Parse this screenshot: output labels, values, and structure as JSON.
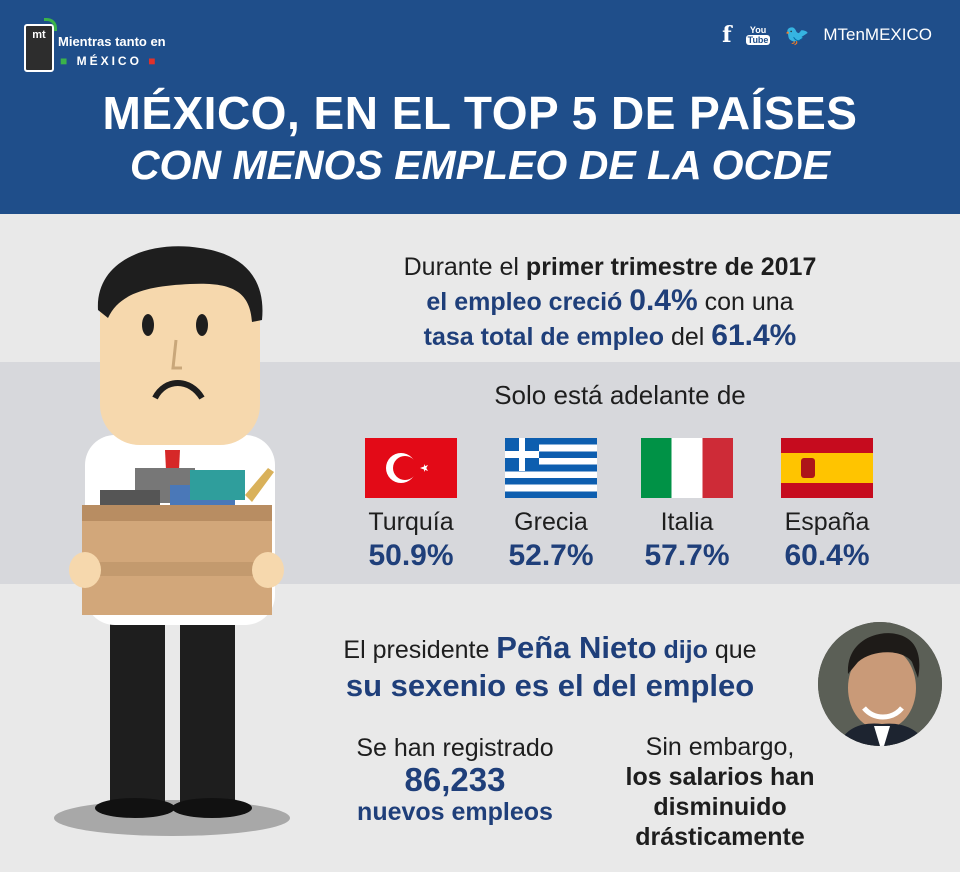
{
  "brand": {
    "line1": "Mientras tanto en",
    "line2": "MÉXICO",
    "badge": "mt"
  },
  "social": {
    "youtube_top": "You",
    "youtube_bottom": "Tube",
    "handle": "MTenMEXICO"
  },
  "title": {
    "line1": "MÉXICO, EN EL TOP 5 DE PAÍSES",
    "line2": "CON MENOS EMPLEO DE LA OCDE"
  },
  "stat": {
    "p1": "Durante el ",
    "p1b": "primer trimestre de 2017",
    "p2b": "el empleo creció ",
    "p2v": "0.4%",
    "p2": " con una",
    "p3b": "tasa total de empleo",
    "p3": " del ",
    "p3v": "61.4%"
  },
  "ahead_label": "Solo está adelante de",
  "countries": [
    {
      "name": "Turquía",
      "value": "50.9%"
    },
    {
      "name": "Grecia",
      "value": "52.7%"
    },
    {
      "name": "Italia",
      "value": "57.7%"
    },
    {
      "name": "España",
      "value": "60.4%"
    }
  ],
  "president": {
    "p1": "El presidente ",
    "p1b": "Peña Nieto",
    "p1c": " dijo",
    "p1d": " que",
    "p2": "su sexenio es el del empleo"
  },
  "registered": {
    "line1": "Se han registrado",
    "number": "86,233",
    "line3": "nuevos empleos"
  },
  "salaries": {
    "line1": "Sin embargo,",
    "line2": "los salarios han",
    "line3": "disminuido",
    "line4": "drásticamente"
  },
  "colors": {
    "header": "#1f4e8a",
    "navy_text": "#1f3f7a",
    "band": "#d7d8dc"
  }
}
